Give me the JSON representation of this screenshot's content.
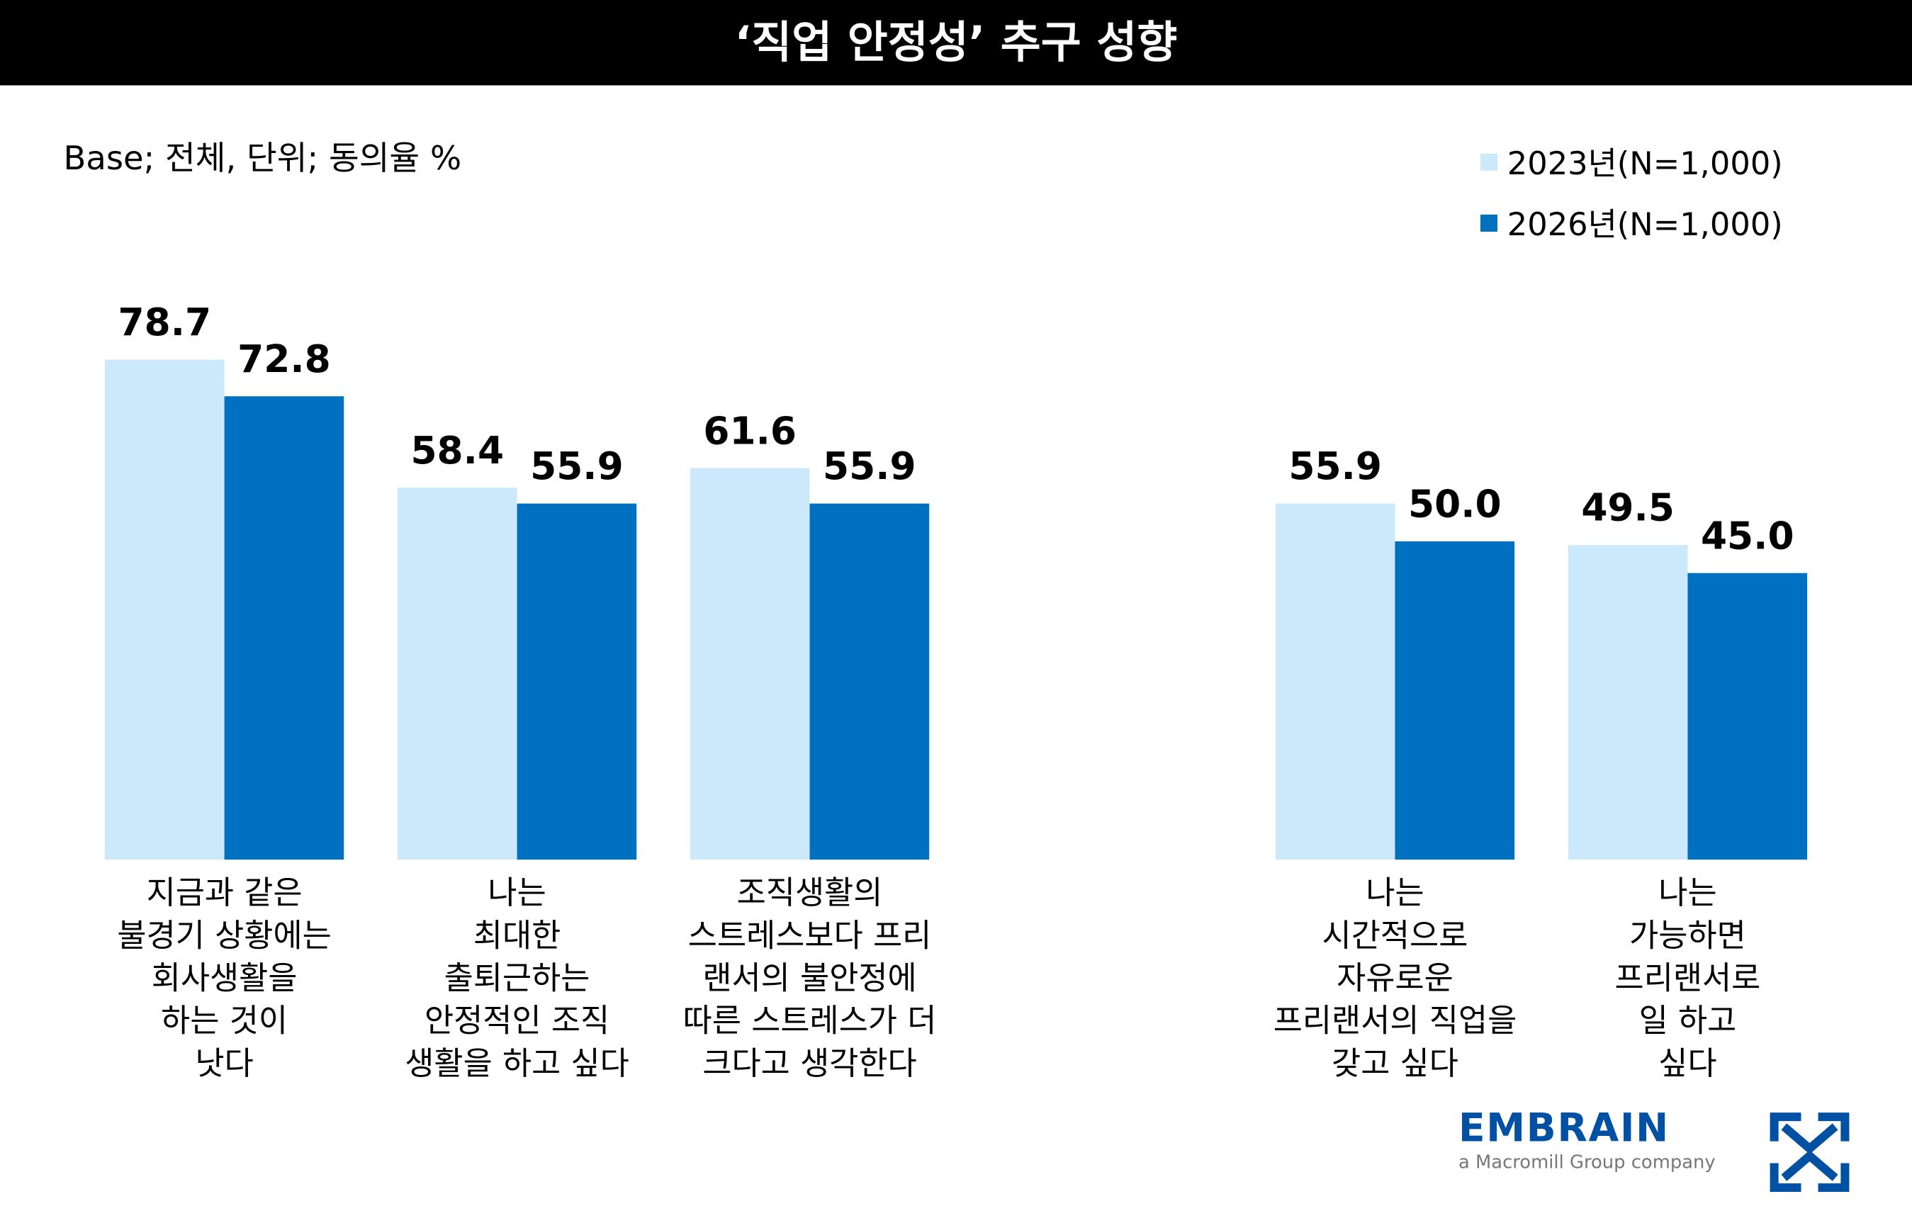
{
  "title": "‘직업 안정성’ 추구 성향",
  "base_note": "Base; 전체, 단위; 동의율 %",
  "logo": {
    "name": "EMBRAIN",
    "tagline": "a Macromill Group company"
  },
  "chart_data": {
    "type": "bar",
    "title": "‘직업 안정성’ 추구 성향",
    "ylabel": "동의율 %",
    "ylim": [
      0,
      80
    ],
    "grid": false,
    "legend_position": "top-right",
    "categories": [
      "지금과 같은\n불경기 상황에는\n회사생활을\n하는 것이\n낫다",
      "나는\n최대한\n출퇴근하는\n안정적인 조직\n생활을 하고 싶다",
      "조직생활의\n스트레스보다 프리\n랜서의 불안정에\n따른 스트레스가 더\n크다고 생각한다",
      "나는\n시간적으로\n자유로운\n프리랜서의 직업을\n갖고 싶다",
      "나는\n가능하면\n프리랜서로\n일 하고\n싶다"
    ],
    "series": [
      {
        "name": "2023년(N=1,000)",
        "color": "#cce9fb",
        "values": [
          78.7,
          58.4,
          61.6,
          55.9,
          49.5
        ],
        "labels": [
          "78.7",
          "58.4",
          "61.6",
          "55.9",
          "49.5"
        ]
      },
      {
        "name": "2026년(N=1,000)",
        "color": "#0070c0",
        "values": [
          72.8,
          55.9,
          55.9,
          50.0,
          45.0
        ],
        "labels": [
          "72.8",
          "55.9",
          "55.9",
          "50.0",
          "45.0"
        ]
      }
    ]
  }
}
